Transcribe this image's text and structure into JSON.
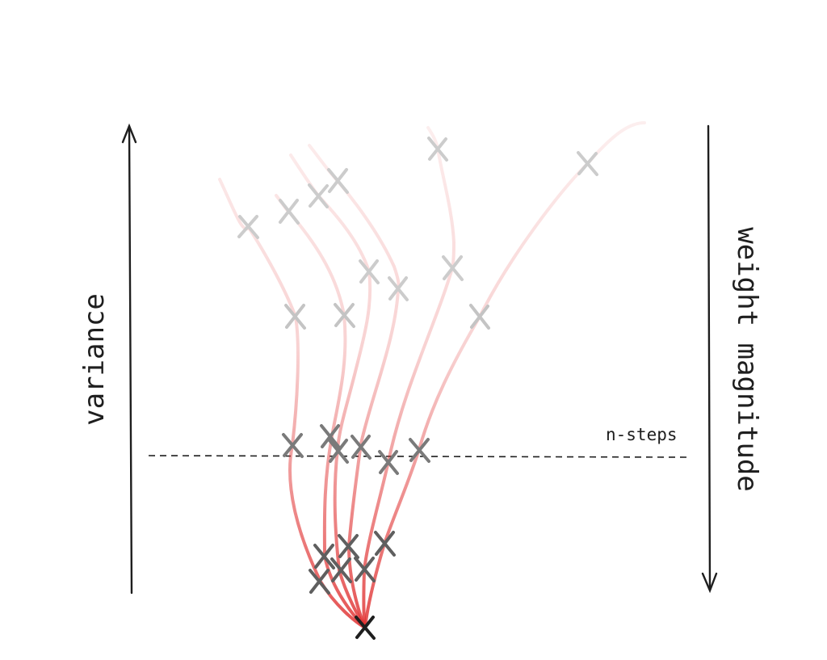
{
  "labels": {
    "left_axis": "variance",
    "right_axis": "weight magnitude",
    "threshold": "n-steps"
  },
  "colors": {
    "axis": "#1e1e1e",
    "trajectory": "#e03131",
    "marker_light": "#cccccc",
    "marker_dark": "#5f5f5f",
    "marker_final": "#1e1e1e"
  }
}
